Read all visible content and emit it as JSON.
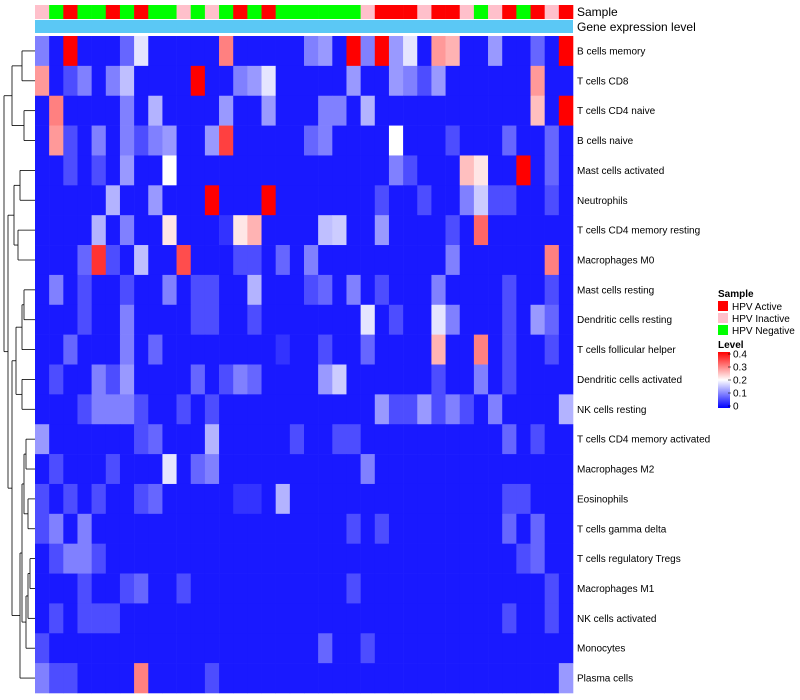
{
  "chart_data": {
    "type": "heatmap",
    "title": "",
    "annotation_labels": {
      "sample": "Sample",
      "expression": "Gene expression level"
    },
    "rows": [
      "B cells memory",
      "T cells CD8",
      "T cells CD4 naive",
      "B cells naive",
      "Mast cells activated",
      "Neutrophils",
      "T cells CD4 memory resting",
      "Macrophages M0",
      "Mast cells resting",
      "Dendritic cells resting",
      "T cells follicular helper",
      "Dendritic cells activated",
      "NK cells resting",
      "T cells CD4 memory activated",
      "Macrophages M2",
      "Eosinophils",
      "T cells gamma delta",
      "T cells regulatory  Tregs",
      "Macrophages M1",
      "NK cells activated",
      "Monocytes",
      "Plasma cells"
    ],
    "sample_groups": [
      "Inactive",
      "Negative",
      "Active",
      "Negative",
      "Negative",
      "Active",
      "Negative",
      "Active",
      "Negative",
      "Negative",
      "Inactive",
      "Negative",
      "Inactive",
      "Negative",
      "Active",
      "Negative",
      "Active",
      "Negative",
      "Negative",
      "Negative",
      "Negative",
      "Negative",
      "Negative",
      "Inactive",
      "Active",
      "Active",
      "Active",
      "Inactive",
      "Active",
      "Active",
      "Inactive",
      "Negative",
      "Inactive",
      "Active",
      "Negative",
      "Active",
      "Inactive",
      "Active"
    ],
    "values": [
      [
        0.1,
        0.02,
        0.4,
        0.02,
        0.02,
        0.02,
        0.08,
        0.18,
        0.02,
        0.02,
        0.02,
        0.02,
        0.02,
        0.3,
        0.02,
        0.02,
        0.02,
        0.02,
        0.02,
        0.1,
        0.12,
        0.02,
        0.4,
        0.1,
        0.4,
        0.12,
        0.18,
        0.02,
        0.28,
        0.26,
        0.02,
        0.02,
        0.12,
        0.02,
        0.02,
        0.08,
        0.02,
        0.4
      ],
      [
        0.28,
        0.02,
        0.06,
        0.1,
        0.02,
        0.1,
        0.15,
        0.02,
        0.02,
        0.02,
        0.02,
        0.4,
        0.02,
        0.02,
        0.1,
        0.12,
        0.18,
        0.02,
        0.02,
        0.02,
        0.02,
        0.02,
        0.12,
        0.02,
        0.02,
        0.12,
        0.1,
        0.06,
        0.12,
        0.02,
        0.02,
        0.02,
        0.02,
        0.02,
        0.02,
        0.28,
        0.02,
        0.02
      ],
      [
        0.02,
        0.3,
        0.02,
        0.02,
        0.02,
        0.02,
        0.1,
        0.02,
        0.14,
        0.02,
        0.02,
        0.02,
        0.02,
        0.12,
        0.02,
        0.02,
        0.12,
        0.02,
        0.02,
        0.02,
        0.1,
        0.1,
        0.02,
        0.14,
        0.02,
        0.02,
        0.02,
        0.02,
        0.02,
        0.02,
        0.02,
        0.02,
        0.02,
        0.02,
        0.02,
        0.25,
        0.02,
        0.4
      ],
      [
        0.02,
        0.28,
        0.06,
        0.02,
        0.1,
        0.02,
        0.1,
        0.06,
        0.1,
        0.12,
        0.02,
        0.02,
        0.12,
        0.35,
        0.02,
        0.02,
        0.02,
        0.02,
        0.02,
        0.08,
        0.1,
        0.02,
        0.02,
        0.02,
        0.02,
        0.2,
        0.02,
        0.02,
        0.02,
        0.06,
        0.02,
        0.02,
        0.02,
        0.08,
        0.02,
        0.02,
        0.08,
        0.02
      ],
      [
        0.02,
        0.02,
        0.06,
        0.02,
        0.06,
        0.02,
        0.12,
        0.02,
        0.02,
        0.2,
        0.02,
        0.02,
        0.02,
        0.02,
        0.02,
        0.02,
        0.02,
        0.02,
        0.02,
        0.02,
        0.02,
        0.02,
        0.02,
        0.02,
        0.02,
        0.1,
        0.06,
        0.02,
        0.02,
        0.02,
        0.25,
        0.22,
        0.02,
        0.02,
        0.4,
        0.02,
        0.08,
        0.02
      ],
      [
        0.02,
        0.02,
        0.02,
        0.02,
        0.02,
        0.14,
        0.02,
        0.02,
        0.12,
        0.02,
        0.02,
        0.02,
        0.4,
        0.02,
        0.02,
        0.02,
        0.4,
        0.02,
        0.02,
        0.02,
        0.02,
        0.02,
        0.02,
        0.02,
        0.06,
        0.02,
        0.02,
        0.06,
        0.02,
        0.02,
        0.1,
        0.16,
        0.06,
        0.06,
        0.02,
        0.02,
        0.06,
        0.02
      ],
      [
        0.02,
        0.02,
        0.02,
        0.02,
        0.14,
        0.02,
        0.1,
        0.02,
        0.02,
        0.22,
        0.02,
        0.02,
        0.02,
        0.04,
        0.22,
        0.26,
        0.02,
        0.02,
        0.02,
        0.02,
        0.15,
        0.16,
        0.02,
        0.02,
        0.12,
        0.02,
        0.02,
        0.02,
        0.02,
        0.06,
        0.02,
        0.32,
        0.02,
        0.02,
        0.02,
        0.02,
        0.02,
        0.02
      ],
      [
        0.02,
        0.02,
        0.02,
        0.08,
        0.36,
        0.06,
        0.02,
        0.15,
        0.02,
        0.02,
        0.34,
        0.02,
        0.02,
        0.02,
        0.06,
        0.06,
        0.02,
        0.08,
        0.02,
        0.1,
        0.02,
        0.02,
        0.02,
        0.02,
        0.02,
        0.02,
        0.02,
        0.02,
        0.02,
        0.1,
        0.02,
        0.02,
        0.02,
        0.02,
        0.02,
        0.02,
        0.3,
        0.02
      ],
      [
        0.02,
        0.1,
        0.02,
        0.06,
        0.02,
        0.02,
        0.06,
        0.02,
        0.02,
        0.1,
        0.02,
        0.06,
        0.06,
        0.02,
        0.02,
        0.14,
        0.02,
        0.02,
        0.02,
        0.06,
        0.08,
        0.02,
        0.1,
        0.02,
        0.06,
        0.02,
        0.02,
        0.02,
        0.1,
        0.02,
        0.02,
        0.02,
        0.02,
        0.06,
        0.02,
        0.02,
        0.06,
        0.02
      ],
      [
        0.02,
        0.02,
        0.02,
        0.06,
        0.02,
        0.02,
        0.1,
        0.02,
        0.02,
        0.02,
        0.02,
        0.06,
        0.06,
        0.02,
        0.02,
        0.06,
        0.02,
        0.02,
        0.02,
        0.02,
        0.02,
        0.02,
        0.02,
        0.18,
        0.02,
        0.06,
        0.02,
        0.02,
        0.18,
        0.1,
        0.02,
        0.02,
        0.02,
        0.06,
        0.02,
        0.12,
        0.08,
        0.02
      ],
      [
        0.02,
        0.02,
        0.08,
        0.02,
        0.02,
        0.02,
        0.1,
        0.02,
        0.08,
        0.02,
        0.02,
        0.02,
        0.02,
        0.02,
        0.02,
        0.02,
        0.02,
        0.04,
        0.02,
        0.02,
        0.06,
        0.02,
        0.02,
        0.08,
        0.02,
        0.02,
        0.02,
        0.02,
        0.26,
        0.02,
        0.02,
        0.3,
        0.02,
        0.06,
        0.02,
        0.02,
        0.06,
        0.02
      ],
      [
        0.02,
        0.06,
        0.02,
        0.02,
        0.1,
        0.06,
        0.12,
        0.02,
        0.02,
        0.02,
        0.02,
        0.08,
        0.02,
        0.06,
        0.1,
        0.08,
        0.02,
        0.02,
        0.02,
        0.02,
        0.12,
        0.16,
        0.02,
        0.02,
        0.02,
        0.02,
        0.02,
        0.02,
        0.06,
        0.02,
        0.02,
        0.1,
        0.02,
        0.06,
        0.02,
        0.02,
        0.02,
        0.02
      ],
      [
        0.02,
        0.02,
        0.02,
        0.06,
        0.1,
        0.1,
        0.1,
        0.06,
        0.02,
        0.02,
        0.06,
        0.02,
        0.06,
        0.02,
        0.02,
        0.02,
        0.02,
        0.02,
        0.02,
        0.02,
        0.02,
        0.02,
        0.02,
        0.02,
        0.12,
        0.06,
        0.06,
        0.12,
        0.06,
        0.1,
        0.06,
        0.02,
        0.1,
        0.02,
        0.02,
        0.02,
        0.02,
        0.14
      ],
      [
        0.12,
        0.02,
        0.02,
        0.02,
        0.02,
        0.02,
        0.02,
        0.06,
        0.08,
        0.02,
        0.02,
        0.02,
        0.14,
        0.02,
        0.02,
        0.02,
        0.02,
        0.02,
        0.06,
        0.02,
        0.02,
        0.06,
        0.06,
        0.02,
        0.02,
        0.02,
        0.02,
        0.02,
        0.02,
        0.02,
        0.02,
        0.02,
        0.02,
        0.08,
        0.02,
        0.06,
        0.02,
        0.02
      ],
      [
        0.02,
        0.06,
        0.02,
        0.02,
        0.02,
        0.06,
        0.02,
        0.02,
        0.02,
        0.18,
        0.02,
        0.08,
        0.1,
        0.02,
        0.02,
        0.02,
        0.02,
        0.02,
        0.02,
        0.02,
        0.02,
        0.02,
        0.02,
        0.1,
        0.02,
        0.02,
        0.02,
        0.02,
        0.02,
        0.02,
        0.02,
        0.02,
        0.02,
        0.02,
        0.02,
        0.02,
        0.02,
        0.02
      ],
      [
        0.06,
        0.02,
        0.06,
        0.02,
        0.06,
        0.02,
        0.02,
        0.06,
        0.08,
        0.02,
        0.02,
        0.02,
        0.02,
        0.02,
        0.04,
        0.04,
        0.02,
        0.14,
        0.02,
        0.02,
        0.02,
        0.02,
        0.02,
        0.02,
        0.02,
        0.02,
        0.02,
        0.02,
        0.02,
        0.02,
        0.02,
        0.02,
        0.02,
        0.06,
        0.06,
        0.02,
        0.02,
        0.02
      ],
      [
        0.06,
        0.1,
        0.02,
        0.1,
        0.02,
        0.02,
        0.02,
        0.02,
        0.02,
        0.02,
        0.02,
        0.02,
        0.02,
        0.02,
        0.02,
        0.02,
        0.02,
        0.02,
        0.02,
        0.02,
        0.02,
        0.02,
        0.06,
        0.02,
        0.06,
        0.02,
        0.02,
        0.02,
        0.02,
        0.02,
        0.02,
        0.02,
        0.02,
        0.08,
        0.02,
        0.08,
        0.02,
        0.02
      ],
      [
        0.02,
        0.06,
        0.1,
        0.1,
        0.06,
        0.02,
        0.02,
        0.02,
        0.02,
        0.02,
        0.02,
        0.02,
        0.02,
        0.02,
        0.02,
        0.02,
        0.02,
        0.02,
        0.02,
        0.02,
        0.02,
        0.02,
        0.02,
        0.02,
        0.02,
        0.02,
        0.02,
        0.02,
        0.02,
        0.02,
        0.02,
        0.02,
        0.02,
        0.02,
        0.06,
        0.08,
        0.02,
        0.02
      ],
      [
        0.02,
        0.02,
        0.02,
        0.06,
        0.02,
        0.02,
        0.06,
        0.08,
        0.02,
        0.02,
        0.06,
        0.02,
        0.02,
        0.02,
        0.02,
        0.02,
        0.02,
        0.02,
        0.02,
        0.02,
        0.02,
        0.02,
        0.06,
        0.02,
        0.02,
        0.02,
        0.02,
        0.02,
        0.02,
        0.02,
        0.02,
        0.02,
        0.02,
        0.02,
        0.02,
        0.02,
        0.06,
        0.02
      ],
      [
        0.02,
        0.06,
        0.02,
        0.06,
        0.06,
        0.06,
        0.02,
        0.02,
        0.02,
        0.02,
        0.02,
        0.02,
        0.02,
        0.02,
        0.02,
        0.02,
        0.02,
        0.02,
        0.02,
        0.02,
        0.02,
        0.02,
        0.02,
        0.02,
        0.02,
        0.02,
        0.02,
        0.02,
        0.02,
        0.02,
        0.02,
        0.02,
        0.02,
        0.06,
        0.02,
        0.02,
        0.06,
        0.02
      ],
      [
        0.06,
        0.02,
        0.02,
        0.02,
        0.02,
        0.02,
        0.02,
        0.02,
        0.02,
        0.02,
        0.02,
        0.02,
        0.02,
        0.02,
        0.02,
        0.02,
        0.02,
        0.02,
        0.02,
        0.02,
        0.08,
        0.02,
        0.02,
        0.06,
        0.02,
        0.02,
        0.02,
        0.02,
        0.02,
        0.02,
        0.02,
        0.02,
        0.02,
        0.02,
        0.02,
        0.02,
        0.02,
        0.02
      ],
      [
        0.1,
        0.06,
        0.06,
        0.02,
        0.02,
        0.02,
        0.02,
        0.3,
        0.02,
        0.02,
        0.02,
        0.02,
        0.06,
        0.02,
        0.02,
        0.02,
        0.02,
        0.02,
        0.02,
        0.02,
        0.02,
        0.02,
        0.02,
        0.02,
        0.02,
        0.02,
        0.02,
        0.02,
        0.02,
        0.02,
        0.02,
        0.02,
        0.02,
        0.02,
        0.02,
        0.02,
        0.02,
        0.12
      ]
    ],
    "legend": {
      "sample_title": "Sample",
      "sample_items": [
        {
          "label": "HPV Active",
          "key": "Active",
          "color": "#ff0000"
        },
        {
          "label": "HPV Inactive",
          "key": "Inactive",
          "color": "#ffc0cb"
        },
        {
          "label": "HPV Negative",
          "key": "Negative",
          "color": "#00ff00"
        }
      ],
      "level_title": "Level",
      "level_ticks": [
        "0.4",
        "0.3",
        "0.2",
        "0.1",
        "0"
      ],
      "level_range": [
        0,
        0.4
      ],
      "level_colors": {
        "low": "#0000ff",
        "mid": "#ffffff",
        "high": "#ff0000"
      }
    },
    "expression_bar_color": "#5bc8f5",
    "xlabel": "",
    "ylabel": ""
  }
}
